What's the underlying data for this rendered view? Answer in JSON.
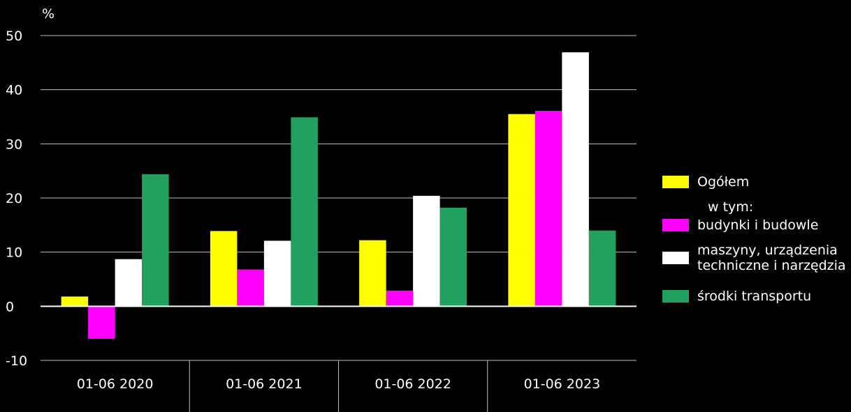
{
  "chart_data": {
    "type": "bar",
    "unit": "%",
    "categories": [
      "01-06 2020",
      "01-06 2021",
      "01-06 2022",
      "01-06 2023"
    ],
    "series": [
      {
        "name": "Ogółem",
        "color": "#ffff00",
        "values": [
          1.8,
          13.9,
          12.2,
          35.5
        ]
      },
      {
        "name": "budynki i budowle",
        "color": "#ff00ff",
        "values": [
          -6.0,
          6.8,
          2.9,
          36.1
        ]
      },
      {
        "name": "maszyny, urządzenia techniczne i narzędzia",
        "color": "#ffffff",
        "values": [
          8.7,
          12.1,
          20.4,
          46.9
        ]
      },
      {
        "name": "środki transportu",
        "color": "#21a060",
        "values": [
          24.4,
          34.9,
          18.2,
          14.0
        ]
      }
    ],
    "ylim": [
      -10,
      50
    ],
    "yticks": [
      50,
      40,
      30,
      20,
      10,
      0,
      -10
    ],
    "grid": true,
    "legend_position": "right"
  },
  "legend": {
    "item0": "Ogółem",
    "subheading": "w tym:",
    "item1": "budynki i budowle",
    "item2_line1": "maszyny, urządzenia",
    "item2_line2": "techniczne i narzędzia",
    "item3": "środki transportu"
  }
}
